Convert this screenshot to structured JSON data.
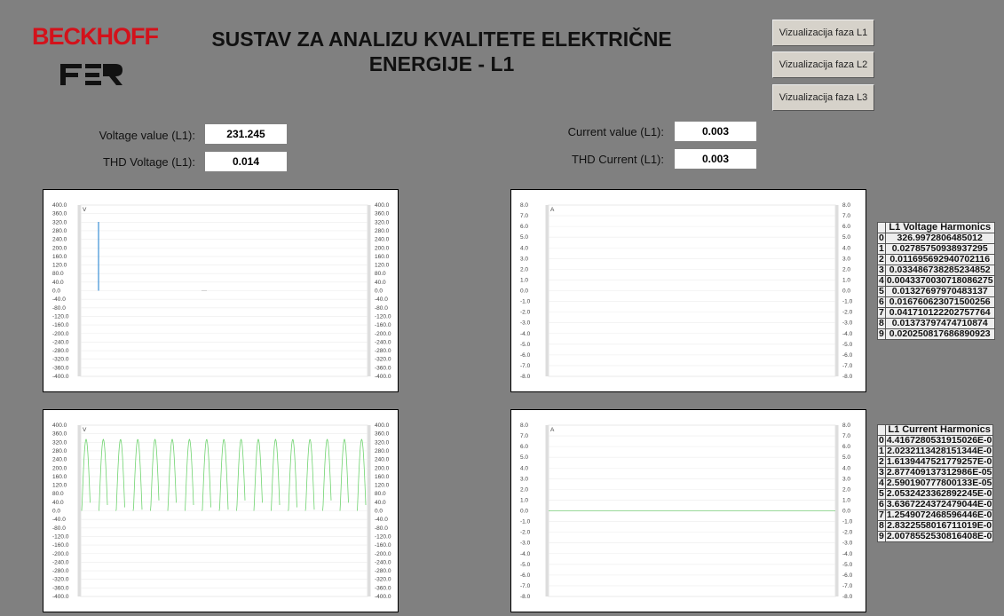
{
  "header": {
    "brand": "BECKHOFF",
    "title_lines": [
      "SUSTAV ZA ANALIZU KVALITETE ELEKTRIČNE",
      "ENERGIJE - L1"
    ]
  },
  "buttons": [
    "Vizualizacija faza L1",
    "Vizualizacija faza L2",
    "Vizualizacija faza L3"
  ],
  "fields": [
    {
      "label": "Voltage value (L1):",
      "value": "231.245"
    },
    {
      "label": "THD Voltage (L1):",
      "value": "0.014"
    },
    {
      "label": "Current value (L1):",
      "value": "0.003"
    },
    {
      "label": "THD Current (L1):",
      "value": "0.003"
    }
  ],
  "axes": {
    "voltage": {
      "unit": "V",
      "ticks": [
        "400.0",
        "360.0",
        "320.0",
        "280.0",
        "240.0",
        "200.0",
        "160.0",
        "120.0",
        "80.0",
        "40.0",
        "0.0",
        "-40.0",
        "-80.0",
        "-120.0",
        "-160.0",
        "-200.0",
        "-240.0",
        "-280.0",
        "-320.0",
        "-360.0",
        "-400.0"
      ]
    },
    "current": {
      "unit": "A",
      "ticks": [
        "8.0",
        "7.0",
        "6.0",
        "5.0",
        "4.0",
        "3.0",
        "2.0",
        "1.0",
        "0.0",
        "-1.0",
        "-2.0",
        "-3.0",
        "-4.0",
        "-5.0",
        "-6.0",
        "-7.0",
        "-8.0"
      ]
    }
  },
  "tables": [
    {
      "title": "L1 Voltage Harmonics",
      "rows": [
        [
          "0",
          "326.9972806485012"
        ],
        [
          "1",
          "0.02785750938937295"
        ],
        [
          "2",
          "0.011695692940702116"
        ],
        [
          "3",
          "0.033486738285234852"
        ],
        [
          "4",
          "0.0043370030718086275"
        ],
        [
          "5",
          "0.01327697970483137"
        ],
        [
          "6",
          "0.016760623071500256"
        ],
        [
          "7",
          "0.041710122202757764"
        ],
        [
          "8",
          "0.01373797474710874"
        ],
        [
          "9",
          "0.020250817686890923"
        ]
      ]
    },
    {
      "title": "L1 Current Harmonics",
      "rows": [
        [
          "0",
          "4.4167280531915026E-0"
        ],
        [
          "1",
          "2.0232113428151344E-0"
        ],
        [
          "2",
          "1.6139447521779257E-0"
        ],
        [
          "3",
          "2.877409137312986E-05"
        ],
        [
          "4",
          "2.590190777800133E-05"
        ],
        [
          "5",
          "2.0532423362892245E-0"
        ],
        [
          "6",
          "3.6367224372479044E-0"
        ],
        [
          "7",
          "1.2549072468596446E-0"
        ],
        [
          "8",
          "2.8322558016711019E-0"
        ],
        [
          "9",
          "2.0078552530816408E-0"
        ]
      ]
    }
  ]
}
